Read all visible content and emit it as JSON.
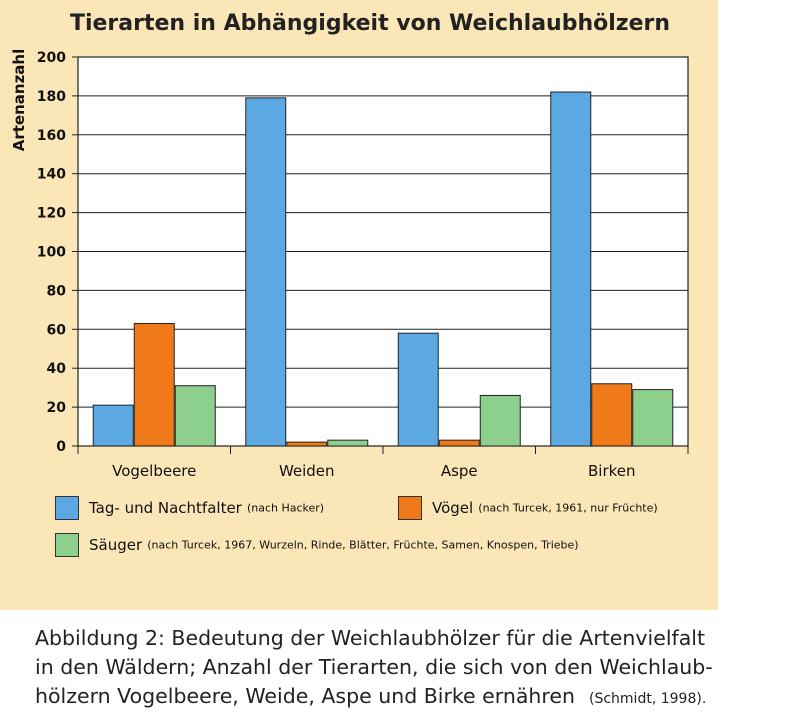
{
  "chart_data": {
    "type": "bar",
    "title": "Tierarten in Abhängigkeit von Weichlaubhölzern",
    "ylabel": "Artenanzahl",
    "xlabel": "",
    "ylim": [
      0,
      200
    ],
    "yticks": [
      "0",
      "20",
      "40",
      "60",
      "80",
      "100",
      "120",
      "140",
      "160",
      "180",
      "200"
    ],
    "grid": true,
    "categories": [
      "Vogelbeere",
      "Weiden",
      "Aspe",
      "Birken"
    ],
    "series": [
      {
        "name": "Tag- und Nachtfalter",
        "note": "(nach Hacker)",
        "color": "#5ba8e3",
        "values": [
          21,
          179,
          58,
          182
        ]
      },
      {
        "name": "Vögel",
        "note": "(nach Turcek, 1961, nur Früchte)",
        "color": "#f07a1a",
        "values": [
          63,
          2,
          3,
          32
        ]
      },
      {
        "name": "Säuger",
        "note": "(nach Turcek, 1967, Wurzeln, Rinde, Blätter, Früchte, Samen, Knospen, Triebe)",
        "color": "#8dd08e",
        "values": [
          31,
          3,
          26,
          29
        ]
      }
    ],
    "legend_position": "bottom"
  },
  "caption": {
    "line1": "Abbildung 2: Bedeutung der Weichlaubhölzer für die Artenvielfalt",
    "line2": "in den Wäldern; Anzahl der Tierarten, die sich von den Weichlaub-",
    "line3": "hölzern Vogelbeere, Weide, Aspe und Birke ernähren",
    "source": "(Schmidt, 1998)."
  }
}
